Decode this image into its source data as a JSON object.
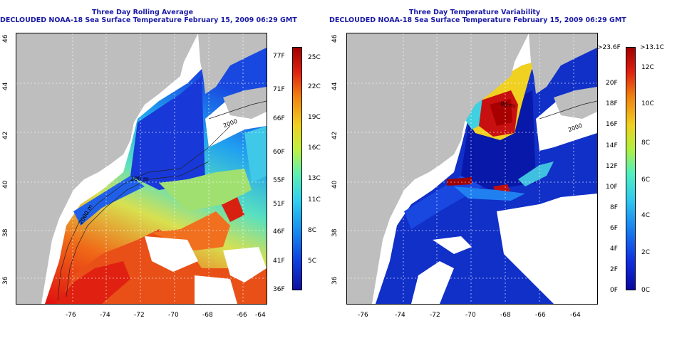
{
  "left_panel": {
    "title_line1": "Three Day Rolling Average",
    "title_line2": "DECLOUDED NOAA-18 Sea Surface Temperature February 15, 2009 06:29 GMT",
    "x_ticks": [
      "-76",
      "-74",
      "-72",
      "-70",
      "-68",
      "-66",
      "-64"
    ],
    "y_ticks": [
      "36",
      "38",
      "40",
      "42",
      "44",
      "46"
    ],
    "contour_labels": [
      "2000 m",
      "200 m",
      "2000"
    ],
    "colorbar": {
      "fahrenheit": [
        "77F",
        "71F",
        "66F",
        "60F",
        "55F",
        "51F",
        "46F",
        "41F",
        "36F"
      ],
      "celsius": [
        "25C",
        "22C",
        "19C",
        "16C",
        "13C",
        "11C",
        "8C",
        "5C"
      ]
    }
  },
  "right_panel": {
    "title_line1": "Three Day Temperature Variability",
    "title_line2": "DECLOUDED NOAA-18 Sea Surface Temperature February 15, 2009 06:29 GMT",
    "x_ticks": [
      "-76",
      "-74",
      "-72",
      "-70",
      "-68",
      "-66",
      "-64"
    ],
    "y_ticks": [
      "36",
      "38",
      "40",
      "42",
      "44",
      "46"
    ],
    "contour_labels": [
      "00 m",
      "2000"
    ],
    "colorbar": {
      "fahrenheit": [
        ">23.6F",
        "20F",
        "18F",
        "16F",
        "14F",
        "12F",
        "10F",
        "8F",
        "6F",
        "4F",
        "2F",
        "0F"
      ],
      "celsius": [
        ">13.1C",
        "12C",
        "10C",
        "8C",
        "6C",
        "4C",
        "2C",
        "0C"
      ]
    }
  },
  "colors": {
    "land": "#bebebe",
    "title": "#1a1aa6",
    "ocean_cold": "#1030c8",
    "ocean_warm": "#e03010"
  }
}
